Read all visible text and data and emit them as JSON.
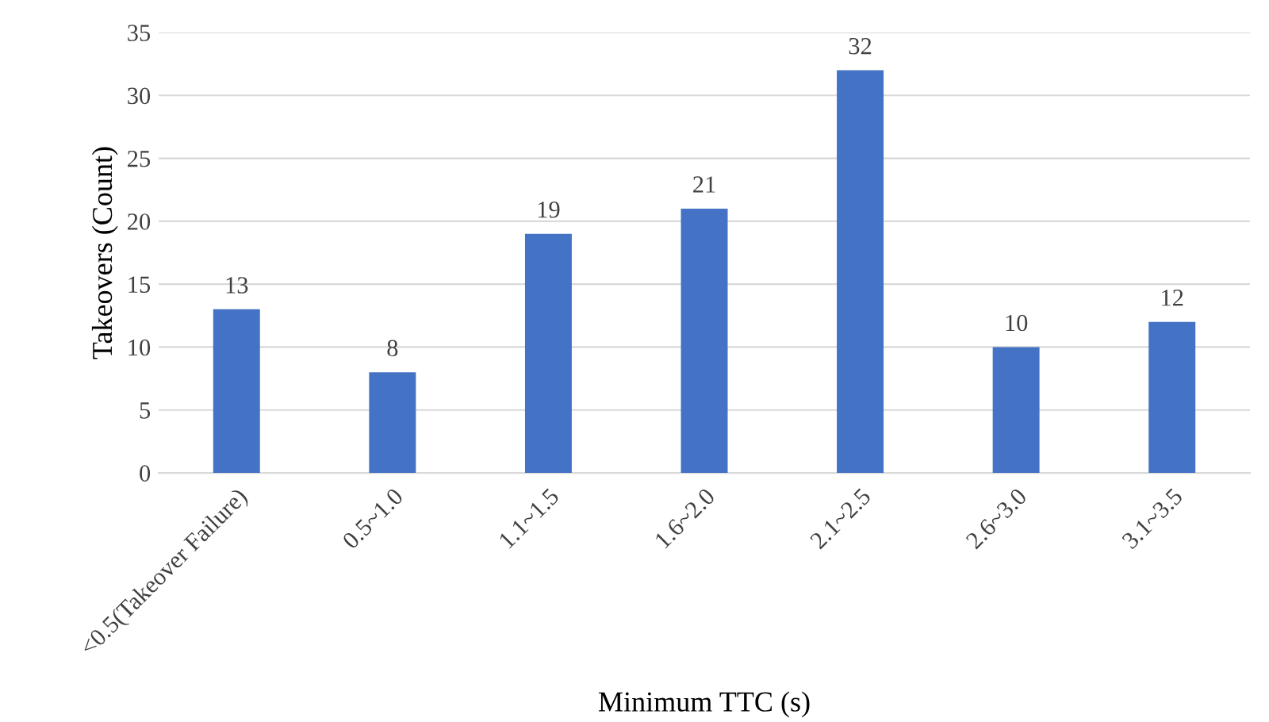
{
  "chart_data": {
    "type": "bar",
    "xlabel": "Minimum TTC (s)",
    "ylabel": "Takeovers (Count)",
    "categories": [
      "<0.5(Takeover Failure)",
      "0.5~1.0",
      "1.1~1.5",
      "1.6~2.0",
      "2.1~2.5",
      "2.6~3.0",
      "3.1~3.5"
    ],
    "values": [
      13,
      8,
      19,
      21,
      32,
      10,
      12
    ],
    "color": "#4472c4",
    "ylim": [
      0,
      35
    ],
    "yticks": [
      0,
      5,
      10,
      15,
      20,
      25,
      30,
      35
    ],
    "grid": "y",
    "data_labels": true
  }
}
